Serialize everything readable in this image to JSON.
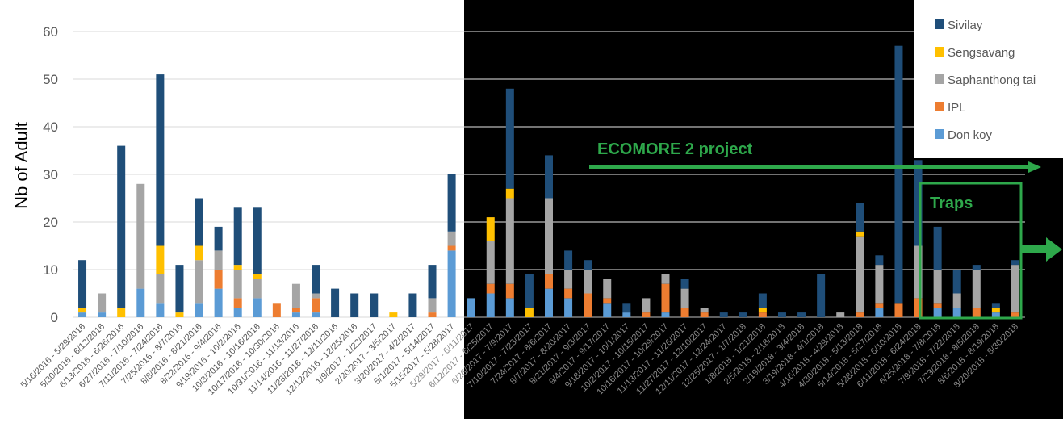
{
  "colors": {
    "Sivilay": "#1f4e79",
    "Sengsavang": "#ffc000",
    "Saphanthong tai": "#a5a5a5",
    "IPL": "#ed7d31",
    "Don koy": "#5b9bd5",
    "annotation": "#2ea84b",
    "dark_panel": "#000000"
  },
  "chart_data": {
    "type": "bar",
    "stacked": true,
    "ylabel": "Nb of Adult",
    "ylim": [
      0,
      60
    ],
    "yticks": [
      0,
      10,
      20,
      30,
      40,
      50,
      60
    ],
    "grid": true,
    "legend_position": "top-right",
    "legend": [
      "Sivilay",
      "Sengsavang",
      "Saphanthong tai",
      "IPL",
      "Don koy"
    ],
    "categories": [
      "5/16/2016 - 5/29/2016",
      "5/30/2016 - 6/12/2016",
      "6/13/2016 - 6/26/2016",
      "6/27/2016 - 7/10/2016",
      "7/11/2016 - 7/24/2016",
      "7/25/2016 - 8/7/2016",
      "8/8/2016 - 8/21/2016",
      "8/22/2016 - 9/4/2016",
      "9/19/2016 - 10/2/2016",
      "10/3/2016 - 10/16/2016",
      "10/17/2016 - 10/30/2016",
      "10/31/2016 - 11/13/2016",
      "11/14/2016 - 11/27/2016",
      "11/28/2016 - 12/11/2016",
      "12/12/2016 - 12/25/2016",
      "1/9/2017 - 1/22/2017",
      "2/20/2017 - 3/5/2017",
      "3/20/2017 - 4/2/2017",
      "5/1/2017 - 5/14/2017",
      "5/15/2017 - 5/28/2017",
      "5/29/2017 - 6/11/2017",
      "6/12/2017 - 6/25/2017",
      "6/26/2017 - 7/9/2017",
      "7/10/2017 - 7/23/2017",
      "7/24/2017 - 8/6/2017",
      "8/7/2017 - 8/20/2017",
      "8/21/2017 - 9/3/2017",
      "9/4/2017 - 9/17/2017",
      "9/18/2017 - 10/1/2017",
      "10/2/2017 - 10/15/2017",
      "10/16/2017 - 10/29/2017",
      "11/13/2017 - 11/26/2017",
      "11/27/2017 - 12/10/2017",
      "12/11/2017 - 12/24/2017",
      "12/25/2017 - 1/7/2018",
      "1/8/2018 - 1/21/2018",
      "2/5/2018 - 2/18/2018",
      "2/19/2018 - 3/4/2018",
      "3/19/2018 - 4/1/2018",
      "4/16/2018 - 4/29/2018",
      "4/30/2018 - 5/13/2018",
      "5/14/2018 - 5/27/2018",
      "5/28/2018 - 6/10/2018",
      "6/11/2018 - 6/24/2018",
      "6/25/2018 - 7/8/2018",
      "7/9/2018 - 7/22/2018",
      "7/23/2018 - 8/5/2018",
      "8/6/2018 - 8/19/2018",
      "8/20/2018 - 8/30/2018"
    ],
    "bars": [
      {
        "Don koy": 1,
        "IPL": 0,
        "Saphanthong tai": 0,
        "Sengsavang": 1,
        "Sivilay": 10
      },
      {
        "Don koy": 1,
        "IPL": 0,
        "Saphanthong tai": 4,
        "Sengsavang": 0,
        "Sivilay": 0
      },
      {
        "Don koy": 0,
        "IPL": 0,
        "Saphanthong tai": 0,
        "Sengsavang": 2,
        "Sivilay": 34
      },
      {
        "Don koy": 6,
        "IPL": 0,
        "Saphanthong tai": 22,
        "Sengsavang": 0,
        "Sivilay": 0
      },
      {
        "Don koy": 3,
        "IPL": 0,
        "Saphanthong tai": 6,
        "Sengsavang": 6,
        "Sivilay": 36
      },
      {
        "Don koy": 0,
        "IPL": 0,
        "Saphanthong tai": 0,
        "Sengsavang": 1,
        "Sivilay": 10
      },
      {
        "Don koy": 3,
        "IPL": 0,
        "Saphanthong tai": 9,
        "Sengsavang": 3,
        "Sivilay": 10
      },
      {
        "Don koy": 6,
        "IPL": 4,
        "Saphanthong tai": 4,
        "Sengsavang": 0,
        "Sivilay": 5
      },
      {
        "Don koy": 2,
        "IPL": 2,
        "Saphanthong tai": 6,
        "Sengsavang": 1,
        "Sivilay": 12
      },
      {
        "Don koy": 4,
        "IPL": 0,
        "Saphanthong tai": 4,
        "Sengsavang": 1,
        "Sivilay": 14
      },
      {
        "Don koy": 0,
        "IPL": 3,
        "Saphanthong tai": 0,
        "Sengsavang": 0,
        "Sivilay": 0
      },
      {
        "Don koy": 1,
        "IPL": 1,
        "Saphanthong tai": 5,
        "Sengsavang": 0,
        "Sivilay": 0
      },
      {
        "Don koy": 1,
        "IPL": 3,
        "Saphanthong tai": 1,
        "Sengsavang": 0,
        "Sivilay": 6
      },
      {
        "Don koy": 0,
        "IPL": 0,
        "Saphanthong tai": 0,
        "Sengsavang": 0,
        "Sivilay": 6
      },
      {
        "Don koy": 0,
        "IPL": 0,
        "Saphanthong tai": 0,
        "Sengsavang": 0,
        "Sivilay": 5
      },
      {
        "Don koy": 0,
        "IPL": 0,
        "Saphanthong tai": 0,
        "Sengsavang": 0,
        "Sivilay": 5
      },
      {
        "Don koy": 0,
        "IPL": 0,
        "Saphanthong tai": 0,
        "Sengsavang": 1,
        "Sivilay": 0
      },
      {
        "Don koy": 0,
        "IPL": 0,
        "Saphanthong tai": 0,
        "Sengsavang": 0,
        "Sivilay": 5
      },
      {
        "Don koy": 0,
        "IPL": 1,
        "Saphanthong tai": 3,
        "Sengsavang": 0,
        "Sivilay": 7
      },
      {
        "Don koy": 14,
        "IPL": 1,
        "Saphanthong tai": 3,
        "Sengsavang": 0,
        "Sivilay": 12
      },
      {
        "Don koy": 4,
        "IPL": 0,
        "Saphanthong tai": 0,
        "Sengsavang": 0,
        "Sivilay": 0
      },
      {
        "Don koy": 5,
        "IPL": 2,
        "Saphanthong tai": 9,
        "Sengsavang": 5,
        "Sivilay": 0
      },
      {
        "Don koy": 4,
        "IPL": 3,
        "Saphanthong tai": 18,
        "Sengsavang": 2,
        "Sivilay": 21
      },
      {
        "Don koy": 0,
        "IPL": 0,
        "Saphanthong tai": 0,
        "Sengsavang": 2,
        "Sivilay": 7
      },
      {
        "Don koy": 6,
        "IPL": 3,
        "Saphanthong tai": 16,
        "Sengsavang": 0,
        "Sivilay": 9
      },
      {
        "Don koy": 4,
        "IPL": 2,
        "Saphanthong tai": 4,
        "Sengsavang": 0,
        "Sivilay": 4
      },
      {
        "Don koy": 0,
        "IPL": 5,
        "Saphanthong tai": 5,
        "Sengsavang": 0,
        "Sivilay": 2
      },
      {
        "Don koy": 3,
        "IPL": 1,
        "Saphanthong tai": 4,
        "Sengsavang": 0,
        "Sivilay": 0
      },
      {
        "Don koy": 1,
        "IPL": 0,
        "Saphanthong tai": 0,
        "Sengsavang": 0,
        "Sivilay": 2
      },
      {
        "Don koy": 0,
        "IPL": 1,
        "Saphanthong tai": 3,
        "Sengsavang": 0,
        "Sivilay": 0
      },
      {
        "Don koy": 1,
        "IPL": 6,
        "Saphanthong tai": 2,
        "Sengsavang": 0,
        "Sivilay": 0
      },
      {
        "Don koy": 0,
        "IPL": 2,
        "Saphanthong tai": 4,
        "Sengsavang": 0,
        "Sivilay": 2
      },
      {
        "Don koy": 0,
        "IPL": 1,
        "Saphanthong tai": 1,
        "Sengsavang": 0,
        "Sivilay": 0
      },
      {
        "Don koy": 0,
        "IPL": 0,
        "Saphanthong tai": 0,
        "Sengsavang": 0,
        "Sivilay": 1
      },
      {
        "Don koy": 0,
        "IPL": 0,
        "Saphanthong tai": 0,
        "Sengsavang": 0,
        "Sivilay": 1
      },
      {
        "Don koy": 0,
        "IPL": 1,
        "Saphanthong tai": 0,
        "Sengsavang": 1,
        "Sivilay": 3
      },
      {
        "Don koy": 0,
        "IPL": 0,
        "Saphanthong tai": 0,
        "Sengsavang": 0,
        "Sivilay": 1
      },
      {
        "Don koy": 0,
        "IPL": 0,
        "Saphanthong tai": 0,
        "Sengsavang": 0,
        "Sivilay": 1
      },
      {
        "Don koy": 0,
        "IPL": 0,
        "Saphanthong tai": 0,
        "Sengsavang": 0,
        "Sivilay": 9
      },
      {
        "Don koy": 0,
        "IPL": 0,
        "Saphanthong tai": 1,
        "Sengsavang": 0,
        "Sivilay": 0
      },
      {
        "Don koy": 0,
        "IPL": 1,
        "Saphanthong tai": 16,
        "Sengsavang": 1,
        "Sivilay": 6
      },
      {
        "Don koy": 2,
        "IPL": 1,
        "Saphanthong tai": 8,
        "Sengsavang": 0,
        "Sivilay": 2
      },
      {
        "Don koy": 0,
        "IPL": 3,
        "Saphanthong tai": 0,
        "Sengsavang": 0,
        "Sivilay": 54
      },
      {
        "Don koy": 0,
        "IPL": 4,
        "Saphanthong tai": 11,
        "Sengsavang": 0,
        "Sivilay": 18
      },
      {
        "Don koy": 2,
        "IPL": 1,
        "Saphanthong tai": 7,
        "Sengsavang": 0,
        "Sivilay": 9
      },
      {
        "Don koy": 2,
        "IPL": 0,
        "Saphanthong tai": 3,
        "Sengsavang": 0,
        "Sivilay": 5
      },
      {
        "Don koy": 0,
        "IPL": 2,
        "Saphanthong tai": 8,
        "Sengsavang": 0,
        "Sivilay": 1
      },
      {
        "Don koy": 1,
        "IPL": 0,
        "Saphanthong tai": 0,
        "Sengsavang": 1,
        "Sivilay": 1
      },
      {
        "Don koy": 0,
        "IPL": 1,
        "Saphanthong tai": 10,
        "Sengsavang": 0,
        "Sivilay": 1
      }
    ],
    "annotations": [
      "ECOMORE 2 project",
      "Traps"
    ]
  }
}
